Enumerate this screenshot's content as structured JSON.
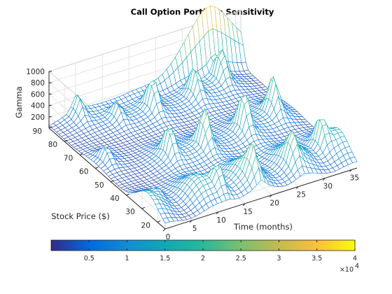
{
  "chart_data": {
    "type": "surface-mesh",
    "title": "Call Option Portfolio Sensitivity",
    "xlabel": "Time (months)",
    "ylabel": "Stock Price ($)",
    "zlabel": "Gamma",
    "xlim": [
      0,
      36
    ],
    "ylim": [
      15,
      90
    ],
    "zlim": [
      0,
      1000
    ],
    "x_ticks": [
      0,
      5,
      10,
      15,
      20,
      25,
      30,
      35
    ],
    "y_ticks": [
      20,
      30,
      40,
      50,
      60,
      70,
      80,
      90
    ],
    "z_ticks": [
      200,
      400,
      600,
      800,
      1000
    ],
    "grid": true,
    "colormap": "parula",
    "colorbar": {
      "location": "bottom",
      "range": [
        0,
        40000
      ],
      "ticks": [
        "0.5",
        "1",
        "1.5",
        "2",
        "2.5",
        "3",
        "3.5",
        "4"
      ],
      "exponent": "×10",
      "exponent_power": "4"
    },
    "surface": {
      "base": 30,
      "front_wall": 320,
      "wall_edge": 0.85,
      "ridge_values": [
        {
          "x": 5,
          "y": 88,
          "z": 310
        },
        {
          "x": 2,
          "y": 60,
          "z": 230
        },
        {
          "x": 3,
          "y": 30,
          "z": 130
        },
        {
          "x": 10,
          "y": 80,
          "z": 260
        },
        {
          "x": 11,
          "y": 50,
          "z": 480
        },
        {
          "x": 12,
          "y": 22,
          "z": 380
        },
        {
          "x": 16,
          "y": 78,
          "z": 500
        },
        {
          "x": 17,
          "y": 48,
          "z": 600
        },
        {
          "x": 18,
          "y": 20,
          "z": 430
        },
        {
          "x": 24,
          "y": 78,
          "z": 460
        },
        {
          "x": 25,
          "y": 50,
          "z": 620
        },
        {
          "x": 26,
          "y": 22,
          "z": 360
        },
        {
          "x": 30,
          "y": 82,
          "z": 500
        },
        {
          "x": 32,
          "y": 55,
          "z": 560
        },
        {
          "x": 33,
          "y": 28,
          "z": 420
        }
      ],
      "top_edge_peak": {
        "x": 30,
        "y": 90,
        "z": 1000
      }
    },
    "colors": {
      "axis": "#262626",
      "grid": "#e3e3e3",
      "parula": [
        "#352a87",
        "#0268e1",
        "#108ed2",
        "#0fa9b4",
        "#2ab99a",
        "#7bbf6f",
        "#c3bb50",
        "#fbc03a",
        "#f9fb0e"
      ]
    }
  }
}
